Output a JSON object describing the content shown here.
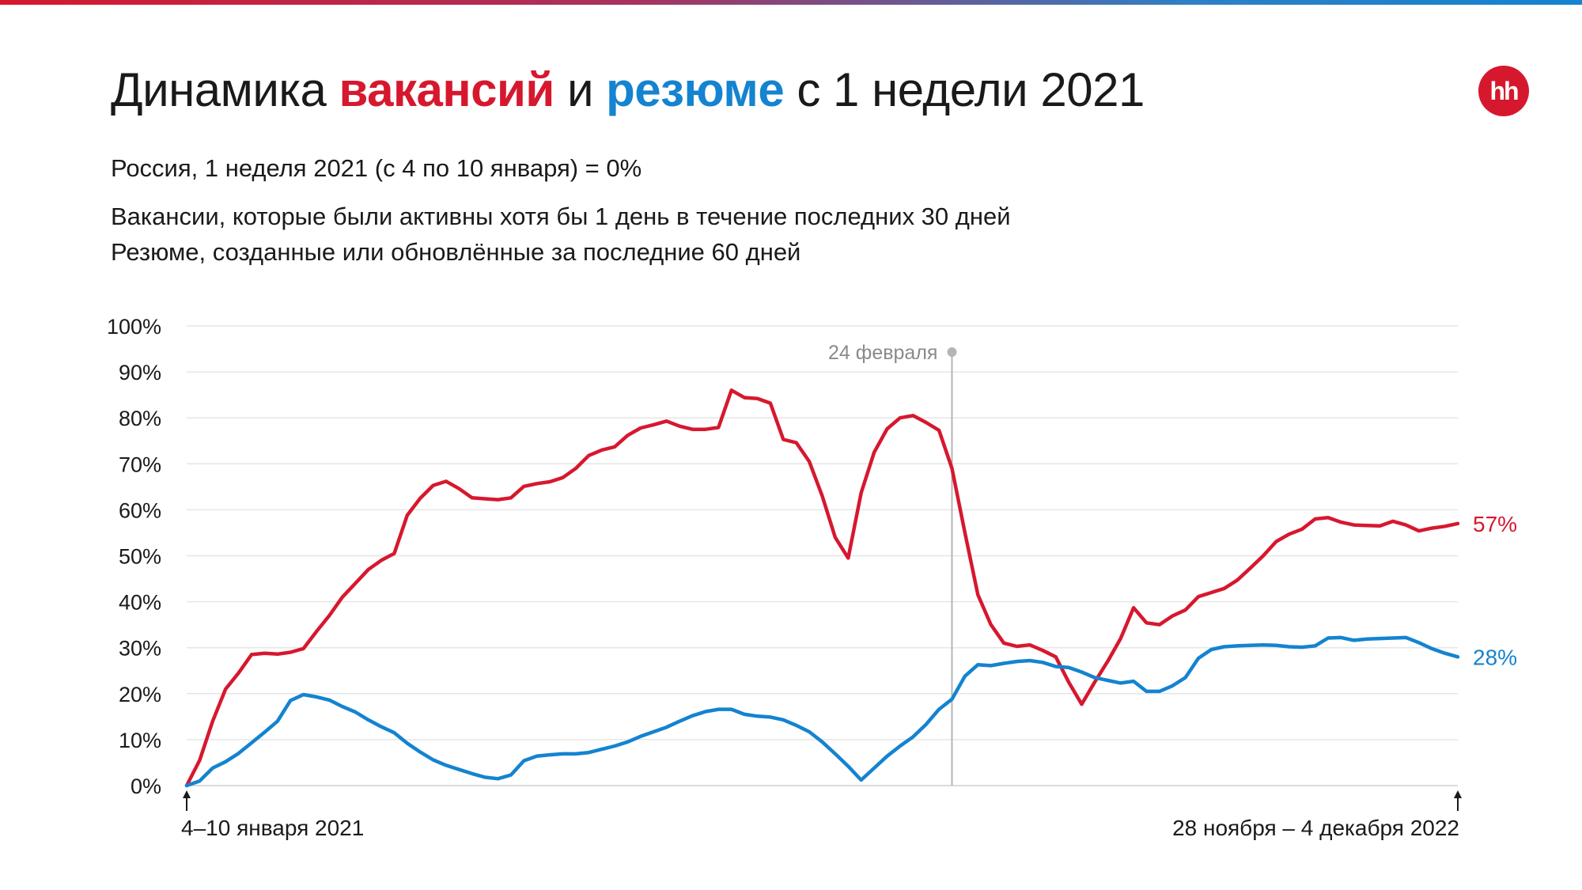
{
  "header": {
    "title_parts": [
      "Динамика ",
      "вакансий",
      " и ",
      "резюме",
      " с 1 недели 2021"
    ],
    "subtitle1": "Россия, 1 неделя 2021 (с 4 по 10 января) = 0%",
    "subtitle2": "Вакансии, которые были активны хотя бы 1 день в течение последних 30 дней",
    "subtitle3": "Резюме, созданные или обновлённые за последние 60 дней",
    "logo_text": "hh",
    "logo_icon": "hh-logo-icon"
  },
  "colors": {
    "vacancies": "#d6182e",
    "resumes": "#1483d0",
    "grid": "#e6e6e6",
    "event_line": "#b5b5b5"
  },
  "chart_data": {
    "type": "line",
    "title": "Динамика вакансий и резюме с 1 недели 2021",
    "y_ticks": [
      "0%",
      "10%",
      "20%",
      "30%",
      "40%",
      "50%",
      "60%",
      "70%",
      "80%",
      "90%",
      "100%"
    ],
    "ylim": [
      0,
      100
    ],
    "x_start_label": "4–10 января 2021",
    "x_end_label": "28 ноября – 4 декабря 2022",
    "grid": true,
    "event": {
      "label": "24 февраля",
      "x_index": 59
    },
    "series": [
      {
        "name": "вакансий",
        "end_label": "57%",
        "values": [
          0,
          5.5,
          14,
          21,
          24.5,
          28.5,
          28.8,
          28.6,
          29,
          29.8,
          33.5,
          37,
          41,
          44,
          47,
          49,
          50.5,
          58.8,
          62.5,
          65.3,
          66.2,
          64.6,
          62.6,
          62.4,
          62.2,
          62.6,
          65.1,
          65.7,
          66.1,
          67,
          69,
          71.8,
          73,
          73.7,
          76.2,
          77.8,
          78.5,
          79.3,
          78.2,
          77.5,
          77.5,
          77.9,
          86,
          84.4,
          84.2,
          83.2,
          75.3,
          74.6,
          70.5,
          63,
          54,
          49.5,
          63.7,
          72.5,
          77.6,
          80,
          80.5,
          79,
          77.3,
          69,
          55,
          41.5,
          35,
          31,
          30.3,
          30.6,
          29.4,
          28,
          22.5,
          17.7,
          22.5,
          27,
          32,
          38.7,
          35.4,
          35,
          36.9,
          38.2,
          41.1,
          42,
          42.9,
          44.7,
          47.3,
          50,
          53.1,
          54.7,
          55.8,
          58,
          58.3,
          57.3,
          56.7,
          56.6,
          56.5,
          57.5,
          56.7,
          55.4,
          56,
          56.4,
          57
        ]
      },
      {
        "name": "резюме",
        "end_label": "28%",
        "values": [
          0,
          1,
          3.8,
          5.2,
          7,
          9.3,
          11.6,
          14,
          18.5,
          19.8,
          19.3,
          18.6,
          17.2,
          16,
          14.3,
          12.8,
          11.5,
          9.2,
          7.3,
          5.6,
          4.4,
          3.5,
          2.6,
          1.8,
          1.5,
          2.3,
          5.4,
          6.4,
          6.7,
          6.9,
          6.9,
          7.2,
          7.9,
          8.6,
          9.5,
          10.7,
          11.7,
          12.7,
          14,
          15.2,
          16.1,
          16.6,
          16.6,
          15.5,
          15.1,
          14.9,
          14.3,
          13.1,
          11.7,
          9.5,
          6.9,
          4.2,
          1.2,
          3.8,
          6.4,
          8.6,
          10.6,
          13.3,
          16.6,
          18.8,
          23.8,
          26.3,
          26.1,
          26.6,
          27,
          27.2,
          26.8,
          25.9,
          25.7,
          24.7,
          23.5,
          22.9,
          22.3,
          22.7,
          20.5,
          20.5,
          21.7,
          23.5,
          27.7,
          29.6,
          30.2,
          30.4,
          30.5,
          30.6,
          30.5,
          30.2,
          30.1,
          30.4,
          32.1,
          32.2,
          31.6,
          31.9,
          32,
          32.1,
          32.2,
          31.1,
          29.8,
          28.8,
          28
        ]
      }
    ]
  }
}
